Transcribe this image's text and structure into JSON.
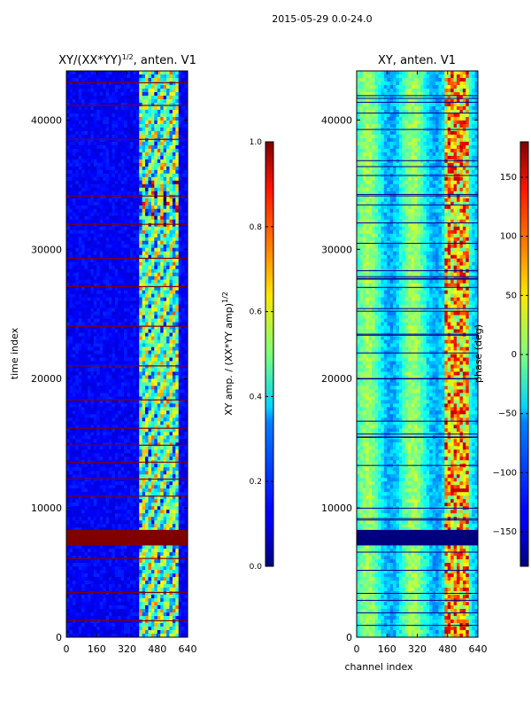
{
  "suptitle": "2015-05-29 0.0-24.0",
  "chart_data": [
    {
      "type": "heatmap",
      "title_main": "XY/(XX*YY)",
      "title_exp": "1/2",
      "title_tail": ", anten. V1",
      "xlabel": "",
      "ylabel": "time index",
      "xlim": [
        0,
        640
      ],
      "ylim": [
        0,
        43800
      ],
      "xticks": [
        0,
        160,
        320,
        480,
        640
      ],
      "yticks": [
        0,
        10000,
        20000,
        30000,
        40000
      ],
      "colorbar": {
        "label_main": "XY amp. / (XX*YY amp)",
        "label_exp": "1/2",
        "range": [
          0.0,
          1.0
        ],
        "ticks": [
          "0.0",
          "0.2",
          "0.4",
          "0.6",
          "0.8",
          "1.0"
        ],
        "colormap": "jet"
      }
    },
    {
      "type": "heatmap",
      "title": "XY, anten. V1",
      "xlabel": "channel index",
      "ylabel": "",
      "xlim": [
        0,
        640
      ],
      "ylim": [
        0,
        43800
      ],
      "xticks": [
        0,
        160,
        320,
        480,
        640
      ],
      "yticks": [
        0,
        10000,
        20000,
        30000,
        40000
      ],
      "colorbar": {
        "label": "phase (deg)",
        "range": [
          -180,
          180
        ],
        "ticks": [
          "150",
          "100",
          "50",
          "0",
          "−50",
          "−100",
          "−150"
        ],
        "colormap": "jet"
      }
    }
  ]
}
